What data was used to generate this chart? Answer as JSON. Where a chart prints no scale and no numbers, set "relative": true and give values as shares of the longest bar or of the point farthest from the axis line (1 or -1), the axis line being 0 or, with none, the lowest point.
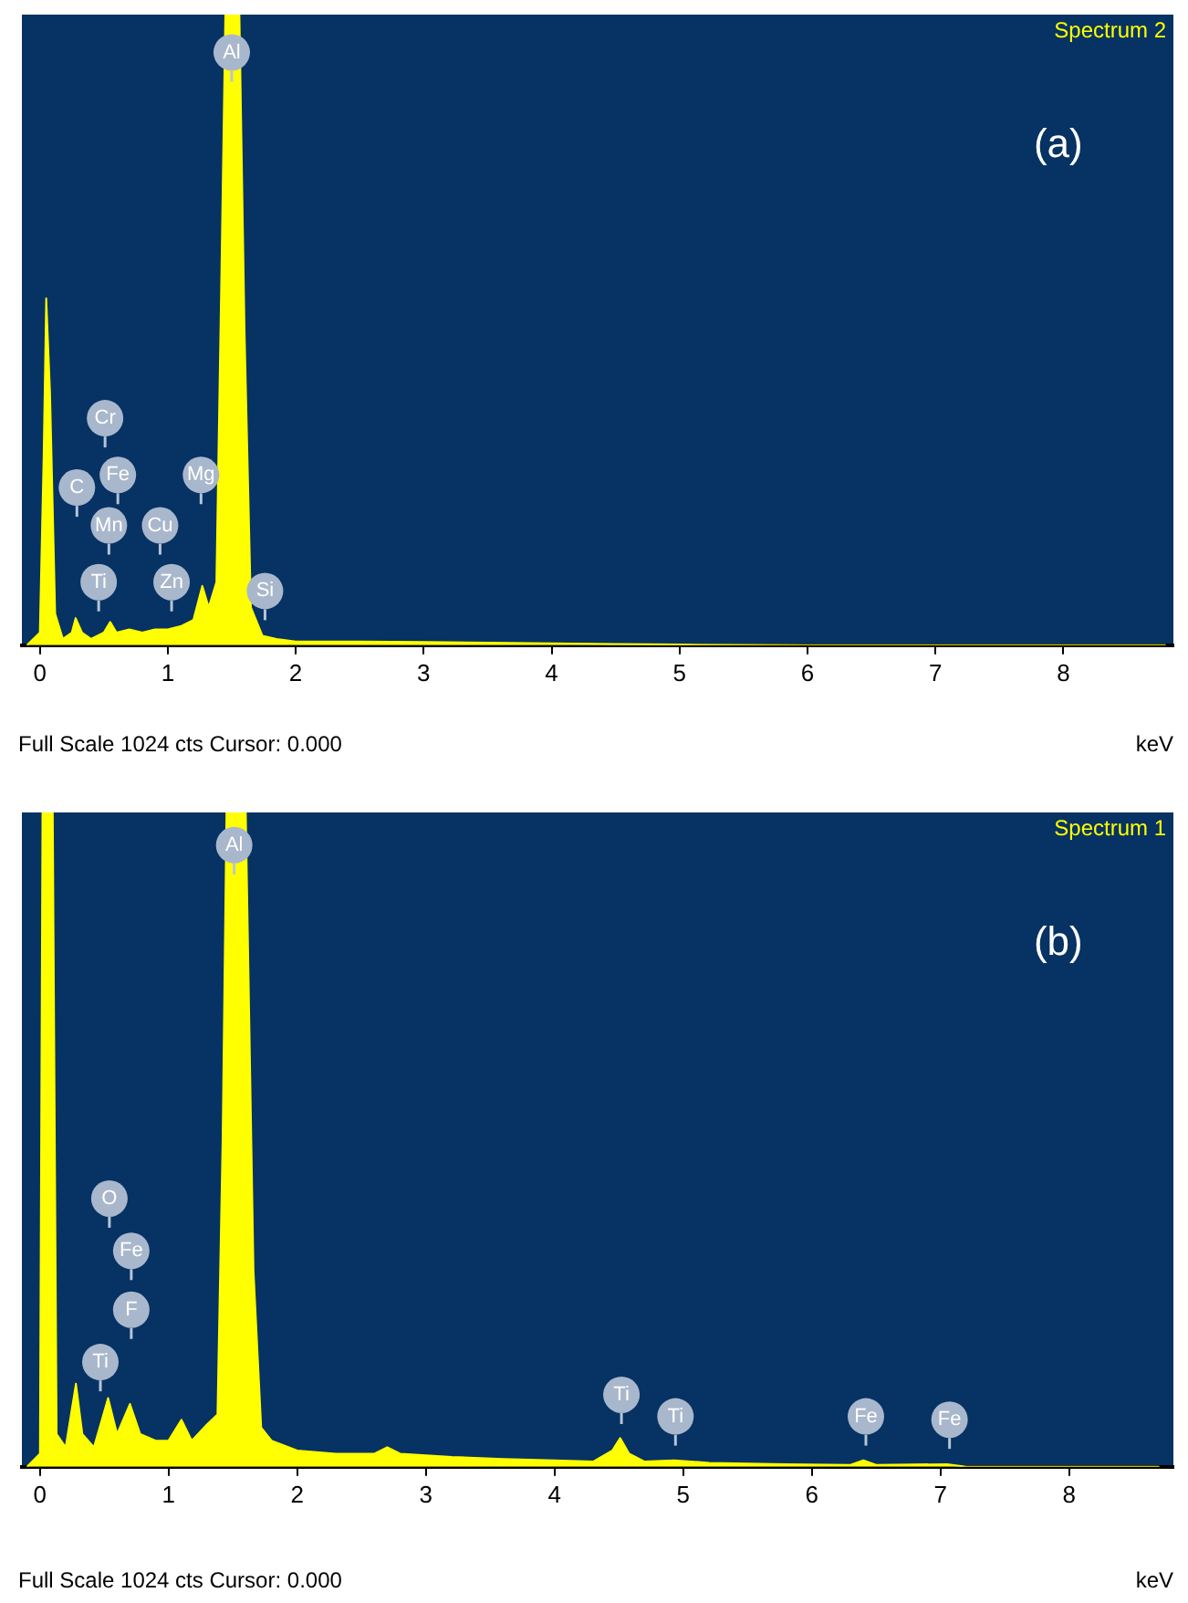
{
  "chart_data": [
    {
      "type": "area",
      "title": "Spectrum 2",
      "xlabel": "keV",
      "relative": true,
      "legend": false,
      "grid": false,
      "color": "#ffff00",
      "x": [
        -0.1,
        0.0,
        0.03,
        0.05,
        0.08,
        0.12,
        0.18,
        0.25,
        0.28,
        0.33,
        0.4,
        0.5,
        0.55,
        0.6,
        0.7,
        0.8,
        0.9,
        1.0,
        1.1,
        1.2,
        1.27,
        1.32,
        1.38,
        1.42,
        1.45,
        1.56,
        1.6,
        1.65,
        1.74,
        1.85,
        2.0,
        2.5,
        3.0,
        3.5,
        4.0,
        4.5,
        5.0,
        6.0,
        8.8
      ],
      "values": [
        0,
        0.02,
        0.3,
        0.55,
        0.4,
        0.05,
        0.01,
        0.02,
        0.043,
        0.02,
        0.01,
        0.02,
        0.037,
        0.02,
        0.025,
        0.02,
        0.025,
        0.025,
        0.03,
        0.04,
        0.094,
        0.06,
        0.1,
        0.6,
        1,
        1,
        0.5,
        0.06,
        0.015,
        0.01,
        0.006,
        0.006,
        0.005,
        0.004,
        0.003,
        0.002,
        0.001,
        0,
        0
      ],
      "xlim": [
        -0.14,
        8.86
      ],
      "xticks": [
        0,
        1,
        2,
        3,
        4,
        5,
        6,
        7,
        8
      ],
      "annotations": [
        "(a)",
        "Full Scale 1024 cts Cursor: 0.000",
        {
          "text": "Al",
          "x": 1.5,
          "y": 0.94
        },
        {
          "text": "Cr",
          "x": 0.51,
          "y": 0.36
        },
        {
          "text": "C",
          "x": 0.29,
          "y": 0.25
        },
        {
          "text": "Fe",
          "x": 0.61,
          "y": 0.27
        },
        {
          "text": "Mg",
          "x": 1.26,
          "y": 0.27
        },
        {
          "text": "Mn",
          "x": 0.54,
          "y": 0.19
        },
        {
          "text": "Cu",
          "x": 0.94,
          "y": 0.19
        },
        {
          "text": "Ti",
          "x": 0.46,
          "y": 0.1
        },
        {
          "text": "Zn",
          "x": 1.03,
          "y": 0.1
        },
        {
          "text": "Si",
          "x": 1.76,
          "y": 0.086
        }
      ]
    },
    {
      "type": "area",
      "title": "Spectrum 1",
      "xlabel": "keV",
      "relative": true,
      "legend": false,
      "grid": false,
      "color": "#ffff00",
      "x": [
        -0.1,
        0.0,
        0.02,
        0.1,
        0.13,
        0.2,
        0.28,
        0.33,
        0.42,
        0.53,
        0.6,
        0.7,
        0.78,
        0.9,
        1.0,
        1.1,
        1.18,
        1.3,
        1.38,
        1.42,
        1.45,
        1.6,
        1.66,
        1.72,
        1.8,
        2.0,
        2.3,
        2.6,
        2.7,
        2.8,
        3.2,
        3.6,
        4.0,
        4.3,
        4.45,
        4.51,
        4.58,
        4.7,
        4.93,
        5.2,
        5.8,
        6.3,
        6.4,
        6.5,
        7.05,
        7.2,
        8.7
      ],
      "values": [
        0,
        0.02,
        1,
        1,
        0.05,
        0.03,
        0.127,
        0.05,
        0.03,
        0.105,
        0.05,
        0.096,
        0.05,
        0.04,
        0.04,
        0.072,
        0.04,
        0.065,
        0.08,
        0.5,
        1,
        1,
        0.3,
        0.06,
        0.04,
        0.025,
        0.02,
        0.02,
        0.03,
        0.02,
        0.015,
        0.012,
        0.01,
        0.008,
        0.025,
        0.044,
        0.02,
        0.008,
        0.01,
        0.006,
        0.004,
        0.003,
        0.01,
        0.003,
        0.004,
        0,
        0
      ],
      "xlim": [
        -0.14,
        8.81
      ],
      "xticks": [
        0,
        1,
        2,
        3,
        4,
        5,
        6,
        7,
        8
      ],
      "annotations": [
        "(b)",
        "Full Scale 1024 cts Cursor: 0.000",
        {
          "text": "Al",
          "x": 1.51,
          "y": 0.95
        },
        {
          "text": "O",
          "x": 0.54,
          "y": 0.41
        },
        {
          "text": "Fe",
          "x": 0.71,
          "y": 0.33
        },
        {
          "text": "F",
          "x": 0.71,
          "y": 0.24
        },
        {
          "text": "Ti",
          "x": 0.47,
          "y": 0.16
        },
        {
          "text": "Ti",
          "x": 4.52,
          "y": 0.11
        },
        {
          "text": "Ti",
          "x": 4.94,
          "y": 0.077
        },
        {
          "text": "Fe",
          "x": 6.42,
          "y": 0.077
        },
        {
          "text": "Fe",
          "x": 7.07,
          "y": 0.072
        }
      ]
    }
  ]
}
